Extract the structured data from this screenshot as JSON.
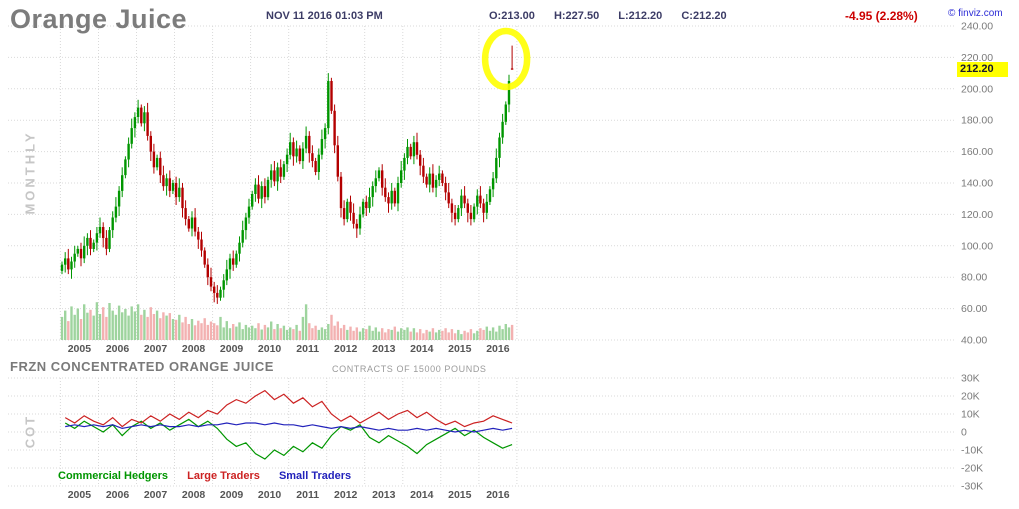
{
  "header": {
    "title": "Orange Juice",
    "timestamp": "NOV 11 2016 01:03 PM",
    "quote": [
      "O:213.00",
      "H:227.50",
      "L:212.20",
      "C:212.20"
    ],
    "change": "-4.95 (2.28%)",
    "copyright": "© finviz.com"
  },
  "side_labels": {
    "main": "MONTHLY",
    "cot": "COT"
  },
  "chart_data": [
    {
      "type": "candlestick",
      "title": "Orange Juice",
      "timeframe": "MONTHLY",
      "x_years": [
        "2005",
        "2006",
        "2007",
        "2008",
        "2009",
        "2010",
        "2011",
        "2012",
        "2013",
        "2014",
        "2015",
        "2016"
      ],
      "ylim": [
        40,
        240
      ],
      "ytick_step": 20,
      "last_candle": {
        "open": 213.0,
        "high": 227.5,
        "low": 212.2,
        "close": 212.2
      },
      "last_price_label": "212.20",
      "closes": [
        88,
        92,
        85,
        90,
        95,
        98,
        92,
        100,
        105,
        98,
        102,
        108,
        112,
        105,
        98,
        110,
        118,
        125,
        135,
        145,
        155,
        165,
        175,
        182,
        188,
        178,
        185,
        170,
        160,
        150,
        156,
        145,
        138,
        143,
        135,
        140,
        131,
        137,
        124,
        117,
        111,
        118,
        109,
        104,
        97,
        88,
        80,
        74,
        70,
        67,
        72,
        78,
        85,
        92,
        88,
        95,
        102,
        110,
        118,
        125,
        133,
        139,
        130,
        138,
        131,
        142,
        148,
        141,
        150,
        144,
        152,
        158,
        166,
        157,
        162,
        154,
        162,
        170,
        159,
        154,
        147,
        158,
        168,
        175,
        205,
        186,
        164,
        144,
        124,
        117,
        128,
        121,
        114,
        111,
        120,
        128,
        124,
        131,
        138,
        143,
        148,
        137,
        131,
        127,
        135,
        127,
        140,
        148,
        156,
        163,
        157,
        166,
        158,
        151,
        144,
        139,
        146,
        137,
        142,
        146,
        140,
        134,
        127,
        121,
        117,
        124,
        132,
        127,
        121,
        117,
        125,
        132,
        127,
        121,
        128,
        136,
        143,
        156,
        169,
        179,
        190,
        205,
        212.2
      ],
      "volumes": [
        55,
        70,
        45,
        80,
        60,
        75,
        50,
        85,
        65,
        72,
        58,
        90,
        62,
        78,
        55,
        88,
        70,
        60,
        82,
        66,
        74,
        58,
        80,
        68,
        85,
        60,
        72,
        55,
        78,
        62,
        70,
        52,
        66,
        58,
        64,
        50,
        48,
        60,
        42,
        55,
        38,
        50,
        35,
        46,
        40,
        52,
        36,
        44,
        40,
        35,
        55,
        30,
        45,
        28,
        38,
        32,
        42,
        26,
        36,
        30,
        34,
        28,
        40,
        25,
        36,
        30,
        44,
        26,
        38,
        28,
        34,
        24,
        30,
        26,
        36,
        22,
        55,
        85,
        40,
        28,
        34,
        24,
        30,
        26,
        38,
        60,
        34,
        44,
        28,
        36,
        24,
        32,
        22,
        30,
        20,
        28,
        26,
        34,
        22,
        30,
        20,
        28,
        18,
        26,
        24,
        32,
        20,
        28,
        24,
        30,
        20,
        28,
        18,
        26,
        16,
        24,
        20,
        28,
        18,
        24,
        22,
        28,
        18,
        26,
        16,
        24,
        14,
        22,
        18,
        26,
        16,
        22,
        28,
        24,
        32,
        22,
        30,
        20,
        34,
        26,
        38,
        30,
        36
      ],
      "colors": {
        "up": "#009600",
        "down": "#b30000",
        "vol_up": "#94cf94",
        "vol_down": "#f2a9a9",
        "grid": "#d9d9d9",
        "axis_text": "#7a7a7a",
        "year_text": "#555555",
        "highlight": "#ffff00",
        "last_price_bg": "#ffff00"
      }
    },
    {
      "type": "line",
      "title": "FRZN CONCENTRATED ORANGE JUICE",
      "subtitle": "CONTRACTS OF 15000 POUNDS",
      "x_years": [
        "2005",
        "2006",
        "2007",
        "2008",
        "2009",
        "2010",
        "2011",
        "2012",
        "2013",
        "2014",
        "2015",
        "2016"
      ],
      "ylim_k": [
        -30,
        30
      ],
      "ytick_values": [
        30,
        20,
        10,
        0,
        -10,
        -20,
        -30
      ],
      "yticks": [
        "30K",
        "20K",
        "10K",
        "0",
        "-10K",
        "-20K",
        "-30K"
      ],
      "points_per_year": 4,
      "series": [
        {
          "name": "Commercial Hedgers",
          "color": "#009600",
          "values": [
            5,
            2,
            6,
            3,
            0,
            4,
            -2,
            3,
            6,
            2,
            5,
            1,
            4,
            7,
            3,
            6,
            2,
            -4,
            -8,
            -6,
            -12,
            -15,
            -10,
            -13,
            -8,
            -11,
            -6,
            -9,
            -2,
            3,
            1,
            4,
            -3,
            -6,
            -2,
            -5,
            -8,
            -12,
            -7,
            -4,
            -1,
            2,
            -2,
            1,
            -3,
            -6,
            -9,
            -7
          ]
        },
        {
          "name": "Large Traders",
          "color": "#cc2222",
          "values": [
            8,
            5,
            9,
            6,
            4,
            8,
            3,
            7,
            5,
            9,
            6,
            10,
            7,
            11,
            8,
            12,
            10,
            15,
            18,
            16,
            20,
            23,
            18,
            21,
            16,
            19,
            14,
            17,
            10,
            6,
            9,
            5,
            8,
            11,
            7,
            10,
            12,
            8,
            11,
            7,
            4,
            6,
            3,
            5,
            6,
            9,
            7,
            5
          ]
        },
        {
          "name": "Small Traders",
          "color": "#2222bb",
          "values": [
            3,
            4,
            3,
            4,
            3,
            4,
            2,
            3,
            4,
            3,
            4,
            3,
            3,
            4,
            3,
            4,
            4,
            5,
            4,
            5,
            5,
            4,
            5,
            4,
            4,
            3,
            4,
            3,
            2,
            3,
            2,
            3,
            2,
            1,
            2,
            1,
            1,
            2,
            1,
            2,
            1,
            0,
            1,
            0,
            1,
            2,
            1,
            2
          ]
        }
      ]
    }
  ]
}
